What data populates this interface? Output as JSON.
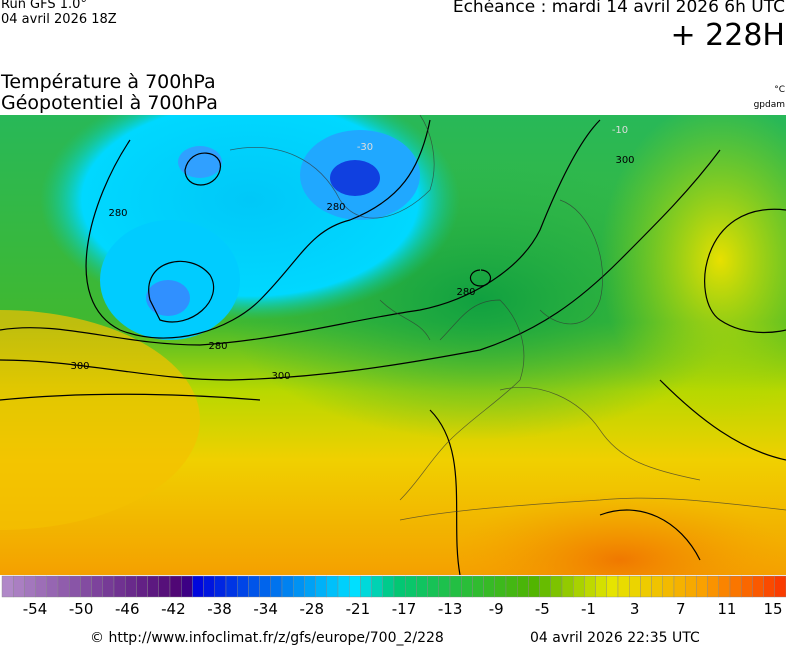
{
  "header": {
    "run": "Run GFS 1.0°",
    "init": "04 avril 2026 18Z",
    "echeance": "Echéance : mardi 14 avril 2026 6h UTC",
    "lead": "+ 228H"
  },
  "titles": {
    "line1": "Température à 700hPa",
    "line2": "Géopotentiel à 700hPa",
    "unit1": "°C",
    "unit2": "gpdam"
  },
  "contour_labels": [
    "280",
    "280",
    "280",
    "280",
    "300",
    "300",
    "300",
    "-30",
    "-10"
  ],
  "colorbar": {
    "ticks": [
      -54,
      -50,
      -46,
      -42,
      -38,
      -34,
      -28,
      -21,
      -17,
      -13,
      -9,
      -5,
      -1,
      3,
      7,
      11,
      15
    ]
  },
  "footer": {
    "url": "© http://www.infoclimat.fr/z/gfs/europe/700_2/228",
    "generated": "04 avril 2026 22:35 UTC"
  }
}
